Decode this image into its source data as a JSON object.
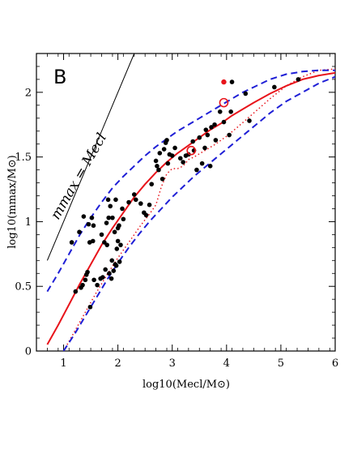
{
  "chart_data": {
    "type": "scatter",
    "panel_label": "B",
    "xlabel": "log10(Mecl/M⊙)",
    "ylabel": "log10(mmax/M⊙)",
    "xlim": [
      0.5,
      6
    ],
    "ylim": [
      0,
      2.3
    ],
    "x_ticks": [
      1,
      2,
      3,
      4,
      5,
      6
    ],
    "y_ticks": [
      0,
      0.5,
      1,
      1.5,
      2
    ],
    "x_tick_labels": [
      "1",
      "2",
      "3",
      "4",
      "5",
      "6"
    ],
    "y_tick_labels": [
      "0",
      "0.5",
      "1",
      "1.5",
      "2"
    ],
    "annotation": "mmax = Mecl",
    "colors": {
      "red": "#e8141b",
      "blue": "#1f1fd6",
      "black": "#000000"
    },
    "points": [
      [
        1.15,
        0.84
      ],
      [
        1.22,
        0.46
      ],
      [
        1.29,
        0.92
      ],
      [
        1.32,
        0.49
      ],
      [
        1.35,
        0.51
      ],
      [
        1.37,
        1.04
      ],
      [
        1.4,
        0.55
      ],
      [
        1.42,
        0.59
      ],
      [
        1.44,
        0.61
      ],
      [
        1.46,
        0.98
      ],
      [
        1.48,
        0.84
      ],
      [
        1.49,
        0.34
      ],
      [
        1.52,
        1.03
      ],
      [
        1.54,
        0.85
      ],
      [
        1.55,
        0.97
      ],
      [
        1.56,
        0.55
      ],
      [
        1.62,
        0.51
      ],
      [
        1.68,
        0.56
      ],
      [
        1.7,
        0.9
      ],
      [
        1.72,
        0.57
      ],
      [
        1.75,
        0.84
      ],
      [
        1.77,
        0.63
      ],
      [
        1.79,
        0.99
      ],
      [
        1.8,
        0.82
      ],
      [
        1.82,
        1.17
      ],
      [
        1.83,
        1.03
      ],
      [
        1.84,
        0.6
      ],
      [
        1.86,
        1.12
      ],
      [
        1.88,
        0.56
      ],
      [
        1.89,
        0.7
      ],
      [
        1.9,
        1.03
      ],
      [
        1.92,
        0.62
      ],
      [
        1.94,
        0.92
      ],
      [
        1.95,
        0.67
      ],
      [
        1.96,
        1.17
      ],
      [
        1.97,
        0.66
      ],
      [
        1.98,
        0.79
      ],
      [
        2.0,
        0.85
      ],
      [
        2.0,
        0.95
      ],
      [
        2.02,
        0.97
      ],
      [
        2.03,
        0.69
      ],
      [
        2.05,
        0.82
      ],
      [
        2.08,
        1.1
      ],
      [
        2.1,
        1.02
      ],
      [
        2.2,
        1.15
      ],
      [
        2.3,
        1.21
      ],
      [
        2.33,
        1.17
      ],
      [
        2.42,
        1.14
      ],
      [
        2.48,
        1.07
      ],
      [
        2.52,
        1.05
      ],
      [
        2.58,
        1.13
      ],
      [
        2.62,
        1.29
      ],
      [
        2.7,
        1.47
      ],
      [
        2.72,
        1.43
      ],
      [
        2.75,
        1.4
      ],
      [
        2.77,
        1.53
      ],
      [
        2.82,
        1.33
      ],
      [
        2.85,
        1.56
      ],
      [
        2.88,
        1.61
      ],
      [
        2.9,
        1.63
      ],
      [
        2.92,
        1.45
      ],
      [
        2.95,
        1.52
      ],
      [
        3.0,
        1.51
      ],
      [
        3.05,
        1.57
      ],
      [
        3.15,
        1.49
      ],
      [
        3.2,
        1.46
      ],
      [
        3.25,
        1.51
      ],
      [
        3.3,
        1.52
      ],
      [
        3.38,
        1.62
      ],
      [
        3.4,
        1.55
      ],
      [
        3.45,
        1.4
      ],
      [
        3.5,
        1.65
      ],
      [
        3.55,
        1.45
      ],
      [
        3.6,
        1.57
      ],
      [
        3.62,
        1.71
      ],
      [
        3.65,
        1.67
      ],
      [
        3.7,
        1.43
      ],
      [
        3.72,
        1.73
      ],
      [
        3.78,
        1.75
      ],
      [
        3.8,
        1.63
      ],
      [
        3.88,
        1.85
      ],
      [
        3.95,
        1.77
      ],
      [
        4.05,
        1.67
      ],
      [
        4.08,
        1.85
      ],
      [
        4.1,
        2.08
      ],
      [
        4.35,
        1.99
      ],
      [
        4.42,
        1.78
      ],
      [
        4.88,
        2.04
      ],
      [
        5.32,
        2.1
      ]
    ],
    "red_points": [
      [
        3.95,
        2.08
      ]
    ],
    "red_open_circles": [
      [
        3.35,
        1.55
      ],
      [
        3.95,
        1.92
      ]
    ],
    "series": [
      {
        "style": "red-solid",
        "x": [
          0.7,
          0.9,
          1.1,
          1.3,
          1.5,
          1.7,
          1.9,
          2.1,
          2.3,
          2.5,
          2.7,
          2.9,
          3.1,
          3.3,
          3.5,
          3.7,
          3.9,
          4.1,
          4.3,
          4.5,
          4.8,
          5.1,
          5.4,
          5.7,
          6.0
        ],
        "y": [
          0.05,
          0.2,
          0.36,
          0.52,
          0.67,
          0.82,
          0.95,
          1.07,
          1.19,
          1.29,
          1.38,
          1.46,
          1.53,
          1.59,
          1.65,
          1.71,
          1.76,
          1.82,
          1.87,
          1.92,
          1.99,
          2.05,
          2.1,
          2.13,
          2.15
        ]
      },
      {
        "style": "red-dotted",
        "x": [
          1.0,
          1.2,
          1.4,
          1.6,
          1.8,
          2.0,
          2.2,
          2.4,
          2.6,
          2.7,
          2.8,
          2.9,
          3.0,
          3.1,
          3.2,
          3.3,
          3.4,
          3.6,
          3.8,
          4.0,
          4.2,
          4.5,
          4.8,
          5.1,
          5.4,
          5.7,
          6.0
        ],
        "y": [
          0.0,
          0.15,
          0.3,
          0.45,
          0.59,
          0.72,
          0.84,
          0.96,
          1.07,
          1.13,
          1.27,
          1.37,
          1.41,
          1.41,
          1.43,
          1.48,
          1.5,
          1.55,
          1.6,
          1.66,
          1.73,
          1.84,
          1.95,
          2.05,
          2.12,
          2.17,
          2.18
        ]
      },
      {
        "style": "blue-dashed",
        "x": [
          0.7,
          0.9,
          1.1,
          1.3,
          1.5,
          1.7,
          1.9,
          2.1,
          2.3,
          2.5,
          2.7,
          2.9,
          3.1,
          3.3,
          3.5,
          3.7,
          3.9,
          4.1,
          4.3,
          4.5,
          4.8,
          5.1,
          5.4,
          5.7,
          6.0
        ],
        "y": [
          0.46,
          0.6,
          0.75,
          0.9,
          1.03,
          1.15,
          1.26,
          1.35,
          1.43,
          1.51,
          1.58,
          1.64,
          1.7,
          1.75,
          1.8,
          1.85,
          1.9,
          1.95,
          2.0,
          2.04,
          2.1,
          2.14,
          2.16,
          2.17,
          2.17
        ]
      },
      {
        "style": "blue-dashed",
        "x": [
          1.0,
          1.2,
          1.4,
          1.6,
          1.8,
          2.0,
          2.2,
          2.4,
          2.6,
          2.8,
          3.0,
          3.2,
          3.4,
          3.6,
          3.8,
          4.0,
          4.2,
          4.4,
          4.6,
          4.8,
          5.1,
          5.4,
          5.7,
          6.0
        ],
        "y": [
          0.0,
          0.13,
          0.27,
          0.41,
          0.55,
          0.68,
          0.8,
          0.91,
          1.01,
          1.1,
          1.19,
          1.27,
          1.35,
          1.42,
          1.49,
          1.56,
          1.63,
          1.7,
          1.77,
          1.84,
          1.93,
          2.0,
          2.07,
          2.12
        ]
      },
      {
        "style": "black-thin",
        "x": [
          0.7,
          2.3
        ],
        "y": [
          0.7,
          2.3
        ]
      }
    ]
  }
}
